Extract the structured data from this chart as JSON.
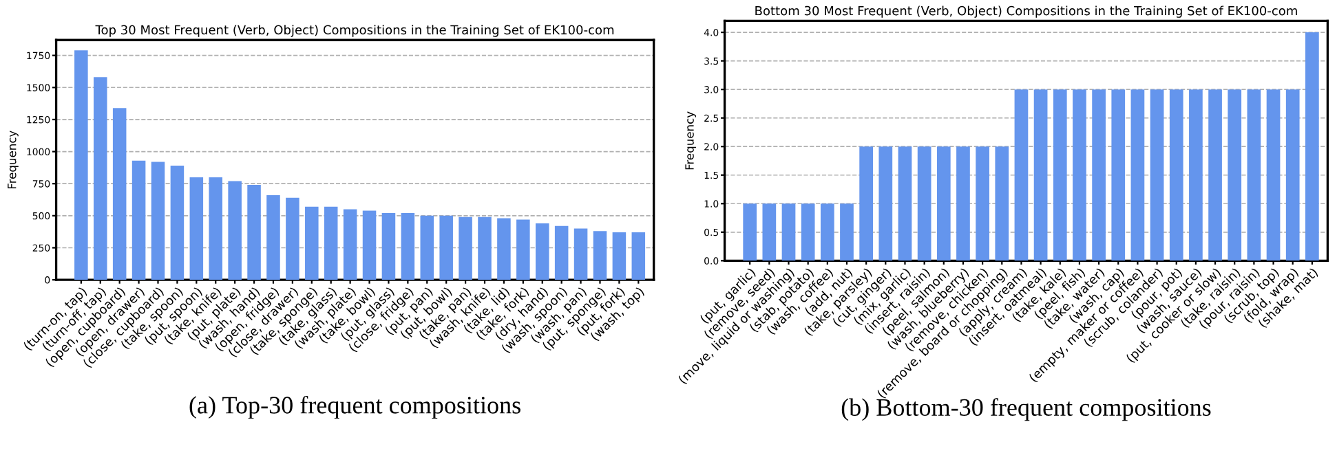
{
  "chart_data": [
    {
      "type": "bar",
      "title": "Top 30 Most Frequent (Verb, Object) Compositions in the Training Set of EK100-com",
      "ylabel": "Frequency",
      "categories": [
        "(turn-on, tap)",
        "(turn-off, tap)",
        "(open, cupboard)",
        "(open, drawer)",
        "(close, cupboard)",
        "(take, spoon)",
        "(put, spoon)",
        "(take, knife)",
        "(put, plate)",
        "(wash, hand)",
        "(open, fridge)",
        "(close, drawer)",
        "(take, sponge)",
        "(take, glass)",
        "(wash, plate)",
        "(take, bowl)",
        "(put, glass)",
        "(close, fridge)",
        "(put, pan)",
        "(put, bowl)",
        "(take, pan)",
        "(wash, knife)",
        "(take, lid)",
        "(take, fork)",
        "(dry, hand)",
        "(wash, spoon)",
        "(wash, pan)",
        "(put, sponge)",
        "(put, fork)",
        "(wash, top)"
      ],
      "values": [
        1790,
        1580,
        1340,
        930,
        920,
        890,
        800,
        800,
        770,
        740,
        660,
        640,
        570,
        570,
        550,
        540,
        520,
        520,
        500,
        500,
        490,
        490,
        480,
        470,
        440,
        420,
        400,
        380,
        370,
        370
      ],
      "color": "#6495ed",
      "ylim": [
        0,
        1870
      ],
      "yticks": [
        0,
        250,
        500,
        750,
        1000,
        1250,
        1500,
        1750
      ],
      "grid": "y",
      "annotations": [
        "(a) Top-30 frequent compositions"
      ]
    },
    {
      "type": "bar",
      "title": "Bottom 30 Most Frequent (Verb, Object) Compositions in the Training Set of EK100-com",
      "ylabel": "Frequency",
      "categories": [
        "(put, garlic)",
        "(remove, seed)",
        "(move, liquid or washing)",
        "(stab, potato)",
        "(wash, coffee)",
        "(add, nut)",
        "(take, parsley)",
        "(cut, ginger)",
        "(mix, garlic)",
        "(insert, raisin)",
        "(peel, salmon)",
        "(wash, blueberry)",
        "(remove, chicken)",
        "(remove, board or chopping)",
        "(apply, cream)",
        "(insert, oatmeal)",
        "(take, kale)",
        "(peel, fish)",
        "(take, water)",
        "(wash, cap)",
        "(empty, maker or coffee)",
        "(scrub, colander)",
        "(pour, pot)",
        "(wash, sauce)",
        "(put, cooker or slow)",
        "(take, raisin)",
        "(pour, raisin)",
        "(scrub, top)",
        "(fold, wrap)",
        "(shake, mat)"
      ],
      "values": [
        1,
        1,
        1,
        1,
        1,
        1,
        2,
        2,
        2,
        2,
        2,
        2,
        2,
        2,
        3,
        3,
        3,
        3,
        3,
        3,
        3,
        3,
        3,
        3,
        3,
        3,
        3,
        3,
        3,
        4
      ],
      "color": "#6495ed",
      "ylim": [
        0,
        4.2
      ],
      "yticks": [
        {
          "value": 0,
          "label": "0.0"
        },
        {
          "value": 0.5,
          "label": "0.5"
        },
        {
          "value": 1,
          "label": "1.0"
        },
        {
          "value": 1.5,
          "label": "1.5"
        },
        {
          "value": 2,
          "label": "2.0"
        },
        {
          "value": 2.5,
          "label": "2.5"
        },
        {
          "value": 3,
          "label": "3.0"
        },
        {
          "value": 3.5,
          "label": "3.5"
        },
        {
          "value": 4,
          "label": "4.0"
        }
      ],
      "grid": "y",
      "annotations": [
        "(b) Bottom-30 frequent compositions"
      ]
    }
  ]
}
